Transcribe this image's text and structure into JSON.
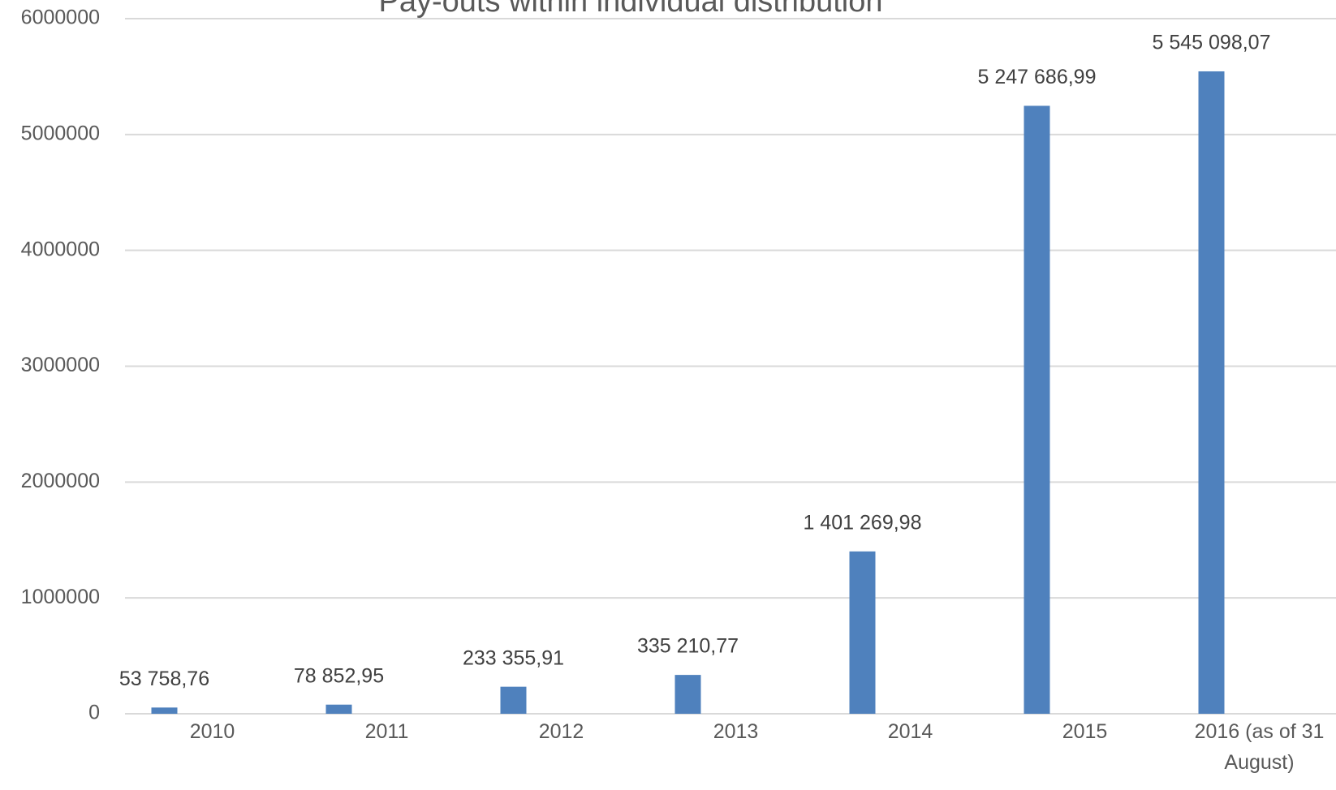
{
  "chart_data": {
    "type": "bar",
    "title": "Pay-outs within individual distribution",
    "categories": [
      "2010",
      "2011",
      "2012",
      "2013",
      "2014",
      "2015",
      "2016 (as of 31 August)"
    ],
    "values": [
      53758.76,
      78852.95,
      233355.91,
      335210.77,
      1401269.98,
      5247686.99,
      5545098.07
    ],
    "value_labels": [
      "53 758,76",
      "78 852,95",
      "233 355,91",
      "335 210,77",
      "1 401 269,98",
      "5 247 686,99",
      "5 545 098,07"
    ],
    "color": "#4f81bd",
    "ylim": [
      0,
      6000000
    ],
    "yticks": [
      0,
      1000000,
      2000000,
      3000000,
      4000000,
      5000000,
      6000000
    ],
    "grid": true
  }
}
